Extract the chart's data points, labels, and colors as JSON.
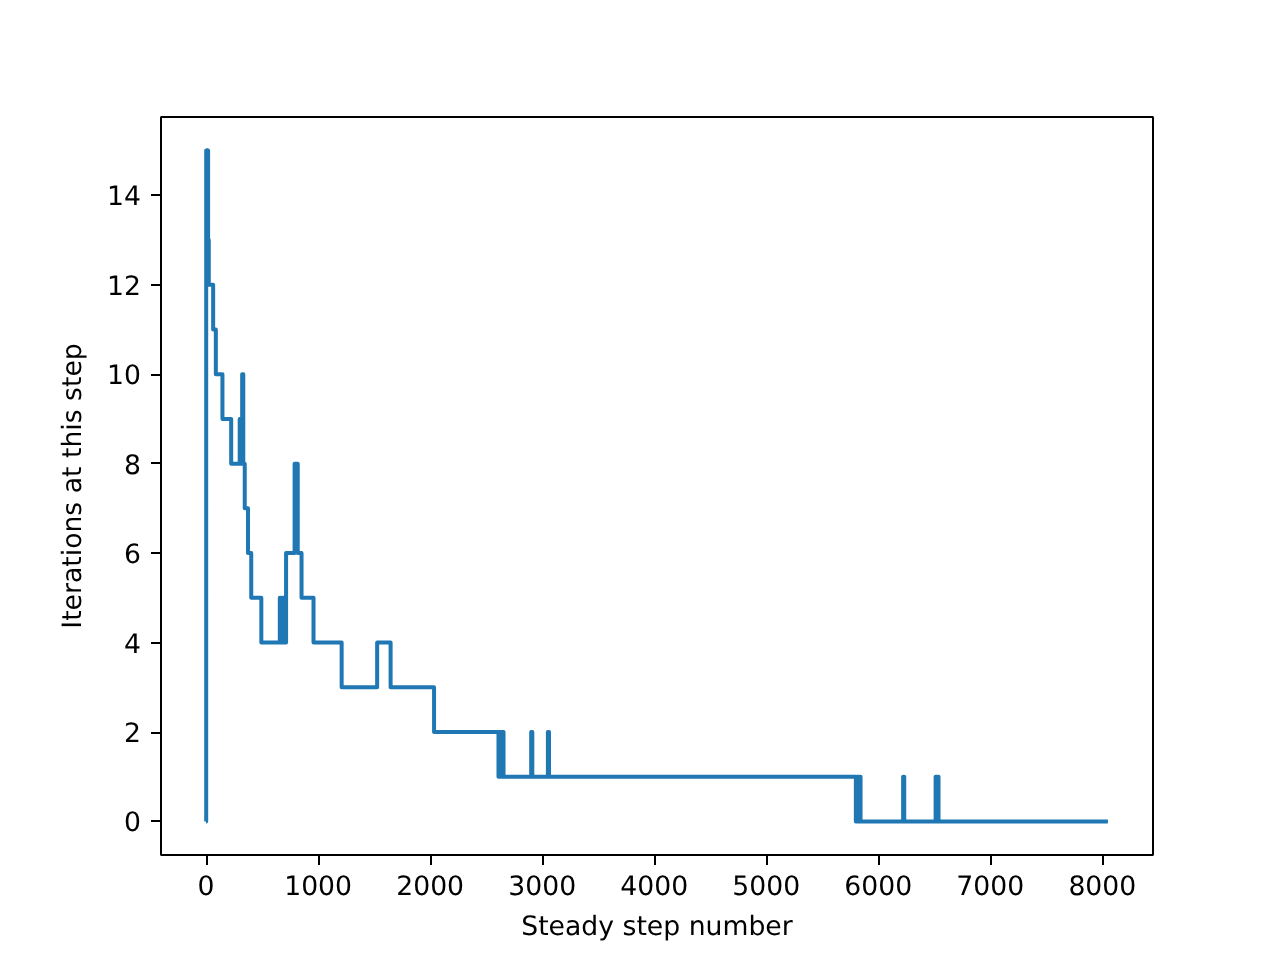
{
  "chart_data": {
    "type": "step",
    "xlabel": "Steady step number",
    "ylabel": "Iterations at this step",
    "color": "#1f77b4",
    "x": [
      0,
      1,
      8,
      12,
      18,
      24,
      63,
      87,
      146,
      224,
      300,
      312,
      322,
      332,
      345,
      374,
      403,
      493,
      658,
      668,
      684,
      694,
      714,
      790,
      800,
      808,
      818,
      852,
      959,
      1210,
      1527,
      1647,
      2035,
      2610,
      2620,
      2630,
      2645,
      2655,
      2902,
      2912,
      3051,
      3061,
      5800,
      5810,
      5822,
      5832,
      5842,
      6222,
      6232,
      6512,
      6522,
      6530,
      6538,
      8050
    ],
    "values": [
      0,
      15,
      14,
      15,
      13,
      12,
      11,
      10,
      9,
      8,
      9,
      8,
      10,
      8,
      7,
      6,
      5,
      4,
      5,
      4,
      5,
      4,
      6,
      8,
      7,
      8,
      6,
      5,
      4,
      3,
      4,
      3,
      2,
      1,
      2,
      1,
      2,
      1,
      2,
      1,
      2,
      1,
      0,
      1,
      0,
      1,
      0,
      1,
      0,
      1,
      0,
      1,
      0,
      0
    ],
    "xlim": [
      -402.5,
      8452.5
    ],
    "ylim": [
      -0.75,
      15.75
    ],
    "xticks": [
      0,
      1000,
      2000,
      3000,
      4000,
      5000,
      6000,
      7000,
      8000
    ],
    "yticks": [
      0,
      2,
      4,
      6,
      8,
      10,
      12,
      14
    ]
  }
}
